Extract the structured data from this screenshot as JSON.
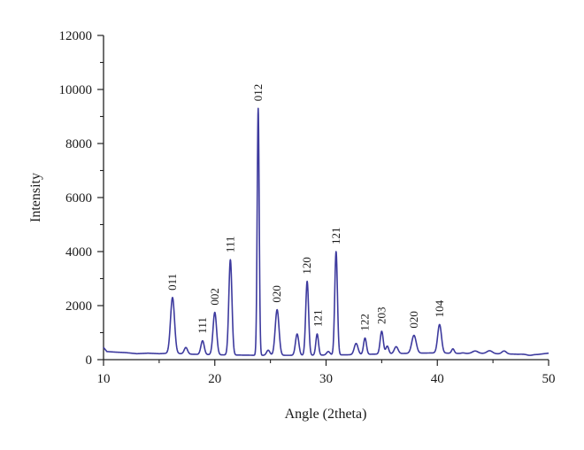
{
  "chart_data": {
    "type": "line",
    "title": "",
    "xlabel": "Angle (2theta)",
    "ylabel": "Intensity",
    "xlim": [
      10,
      50
    ],
    "ylim": [
      0,
      12000
    ],
    "x_ticks": [
      10,
      20,
      30,
      40,
      50
    ],
    "y_ticks": [
      0,
      2000,
      4000,
      6000,
      8000,
      10000,
      12000
    ],
    "x_tick_labels": [
      "10",
      "20",
      "30",
      "40",
      "50"
    ],
    "y_tick_labels": [
      "0",
      "2000",
      "4000",
      "6000",
      "8000",
      "10000",
      "12000"
    ],
    "grid": false,
    "legend": "none",
    "colors": {
      "line": "#3d3a9e",
      "axis": "#222222",
      "text": "#1a1a1a"
    },
    "series": [
      {
        "baseline": [
          [
            10.0,
            450
          ],
          [
            10.3,
            300
          ],
          [
            11,
            280
          ],
          [
            12,
            260
          ],
          [
            13,
            220
          ],
          [
            14,
            240
          ],
          [
            15,
            220
          ],
          [
            16,
            240
          ],
          [
            18,
            200
          ],
          [
            20,
            180
          ],
          [
            22,
            170
          ],
          [
            24,
            160
          ],
          [
            26,
            160
          ],
          [
            28,
            160
          ],
          [
            30,
            170
          ],
          [
            32,
            180
          ],
          [
            34,
            200
          ],
          [
            36,
            220
          ],
          [
            38,
            240
          ],
          [
            40,
            250
          ],
          [
            42,
            230
          ],
          [
            44,
            230
          ],
          [
            46,
            210
          ],
          [
            48,
            200
          ],
          [
            49,
            190
          ],
          [
            50,
            240
          ]
        ],
        "peaks": [
          {
            "x": 16.2,
            "y": 2300,
            "w": 0.18
          },
          {
            "x": 17.4,
            "y": 450,
            "w": 0.15
          },
          {
            "x": 18.9,
            "y": 700,
            "w": 0.15
          },
          {
            "x": 20.0,
            "y": 1750,
            "w": 0.16
          },
          {
            "x": 21.4,
            "y": 3700,
            "w": 0.14
          },
          {
            "x": 23.9,
            "y": 9300,
            "w": 0.09
          },
          {
            "x": 24.8,
            "y": 350,
            "w": 0.15
          },
          {
            "x": 25.6,
            "y": 1850,
            "w": 0.17
          },
          {
            "x": 27.4,
            "y": 950,
            "w": 0.15
          },
          {
            "x": 28.3,
            "y": 2900,
            "w": 0.13
          },
          {
            "x": 29.2,
            "y": 950,
            "w": 0.12
          },
          {
            "x": 30.2,
            "y": 300,
            "w": 0.15
          },
          {
            "x": 30.9,
            "y": 4000,
            "w": 0.12
          },
          {
            "x": 32.7,
            "y": 600,
            "w": 0.17
          },
          {
            "x": 33.5,
            "y": 800,
            "w": 0.13
          },
          {
            "x": 35.0,
            "y": 1050,
            "w": 0.14
          },
          {
            "x": 35.5,
            "y": 500,
            "w": 0.13
          },
          {
            "x": 36.3,
            "y": 480,
            "w": 0.17
          },
          {
            "x": 37.9,
            "y": 900,
            "w": 0.2
          },
          {
            "x": 40.2,
            "y": 1300,
            "w": 0.17
          },
          {
            "x": 41.4,
            "y": 400,
            "w": 0.12
          },
          {
            "x": 42.3,
            "y": 250,
            "w": 0.15
          },
          {
            "x": 43.4,
            "y": 320,
            "w": 0.25
          },
          {
            "x": 44.7,
            "y": 330,
            "w": 0.25
          },
          {
            "x": 46.0,
            "y": 320,
            "w": 0.2
          },
          {
            "x": 47.2,
            "y": 200,
            "w": 0.2
          },
          {
            "x": 48.3,
            "y": 160,
            "w": 0.25
          }
        ]
      }
    ],
    "annotations": [
      {
        "x": 16.2,
        "y": 2300,
        "text": "011"
      },
      {
        "x": 18.9,
        "y": 700,
        "text": "111"
      },
      {
        "x": 20.0,
        "y": 1750,
        "text": "002"
      },
      {
        "x": 21.4,
        "y": 3700,
        "text": "111"
      },
      {
        "x": 23.9,
        "y": 9300,
        "text": "012"
      },
      {
        "x": 25.6,
        "y": 1850,
        "text": "020"
      },
      {
        "x": 28.3,
        "y": 2900,
        "text": "120"
      },
      {
        "x": 29.3,
        "y": 950,
        "text": "121"
      },
      {
        "x": 30.9,
        "y": 4000,
        "text": "121"
      },
      {
        "x": 33.5,
        "y": 800,
        "text": "122"
      },
      {
        "x": 35.0,
        "y": 1050,
        "text": "203"
      },
      {
        "x": 37.9,
        "y": 900,
        "text": "020"
      },
      {
        "x": 40.2,
        "y": 1300,
        "text": "104"
      }
    ]
  }
}
